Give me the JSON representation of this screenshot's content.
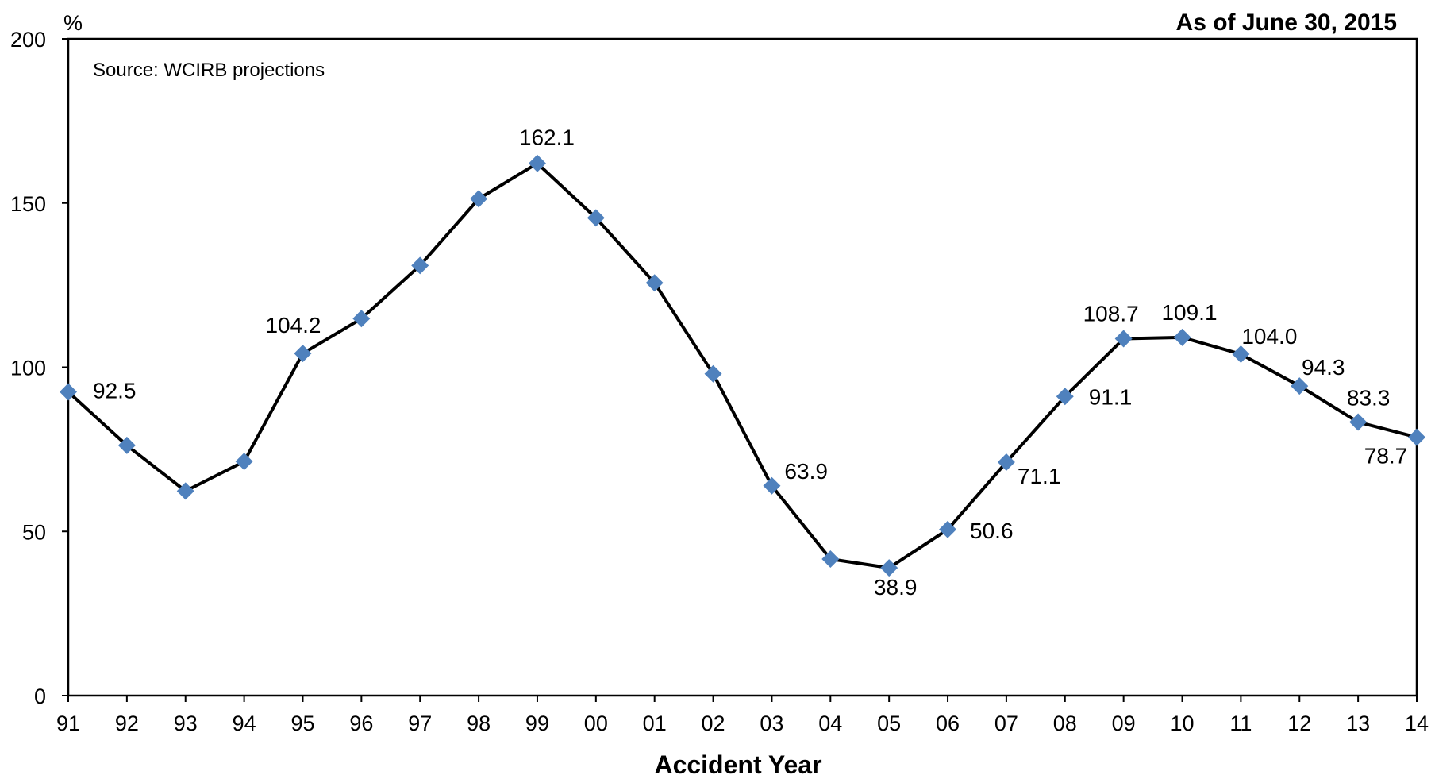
{
  "chart_data": {
    "type": "line",
    "title": "As of June 30, 2015",
    "annotation": "Source: WCIRB projections",
    "ylabel": "%",
    "xlabel": "Accident Year",
    "ylim": [
      0,
      200
    ],
    "yticks": [
      "0",
      "50",
      "100",
      "150",
      "200"
    ],
    "grid": false,
    "categories": [
      "91",
      "92",
      "93",
      "94",
      "95",
      "96",
      "97",
      "98",
      "99",
      "00",
      "01",
      "02",
      "03",
      "04",
      "05",
      "06",
      "07",
      "08",
      "09",
      "10",
      "11",
      "12",
      "13",
      "14"
    ],
    "series": [
      {
        "values": [
          92.5,
          76.2,
          62.3,
          71.3,
          104.2,
          114.8,
          131.0,
          151.3,
          162.1,
          145.5,
          125.7,
          98.0,
          63.9,
          41.6,
          38.9,
          50.6,
          71.1,
          91.1,
          108.7,
          109.1,
          104.0,
          94.3,
          83.3,
          78.7
        ],
        "point_labels": [
          "92.5",
          "",
          "",
          "",
          "104.2",
          "",
          "",
          "",
          "162.1",
          "",
          "",
          "",
          "63.9",
          "",
          "38.9",
          "50.6",
          "71.1",
          "91.1",
          "108.7",
          "109.1",
          "104.0",
          "94.3",
          "83.3",
          "78.7"
        ],
        "line_color": "#000000",
        "marker_color": "#4F81BD"
      }
    ]
  }
}
